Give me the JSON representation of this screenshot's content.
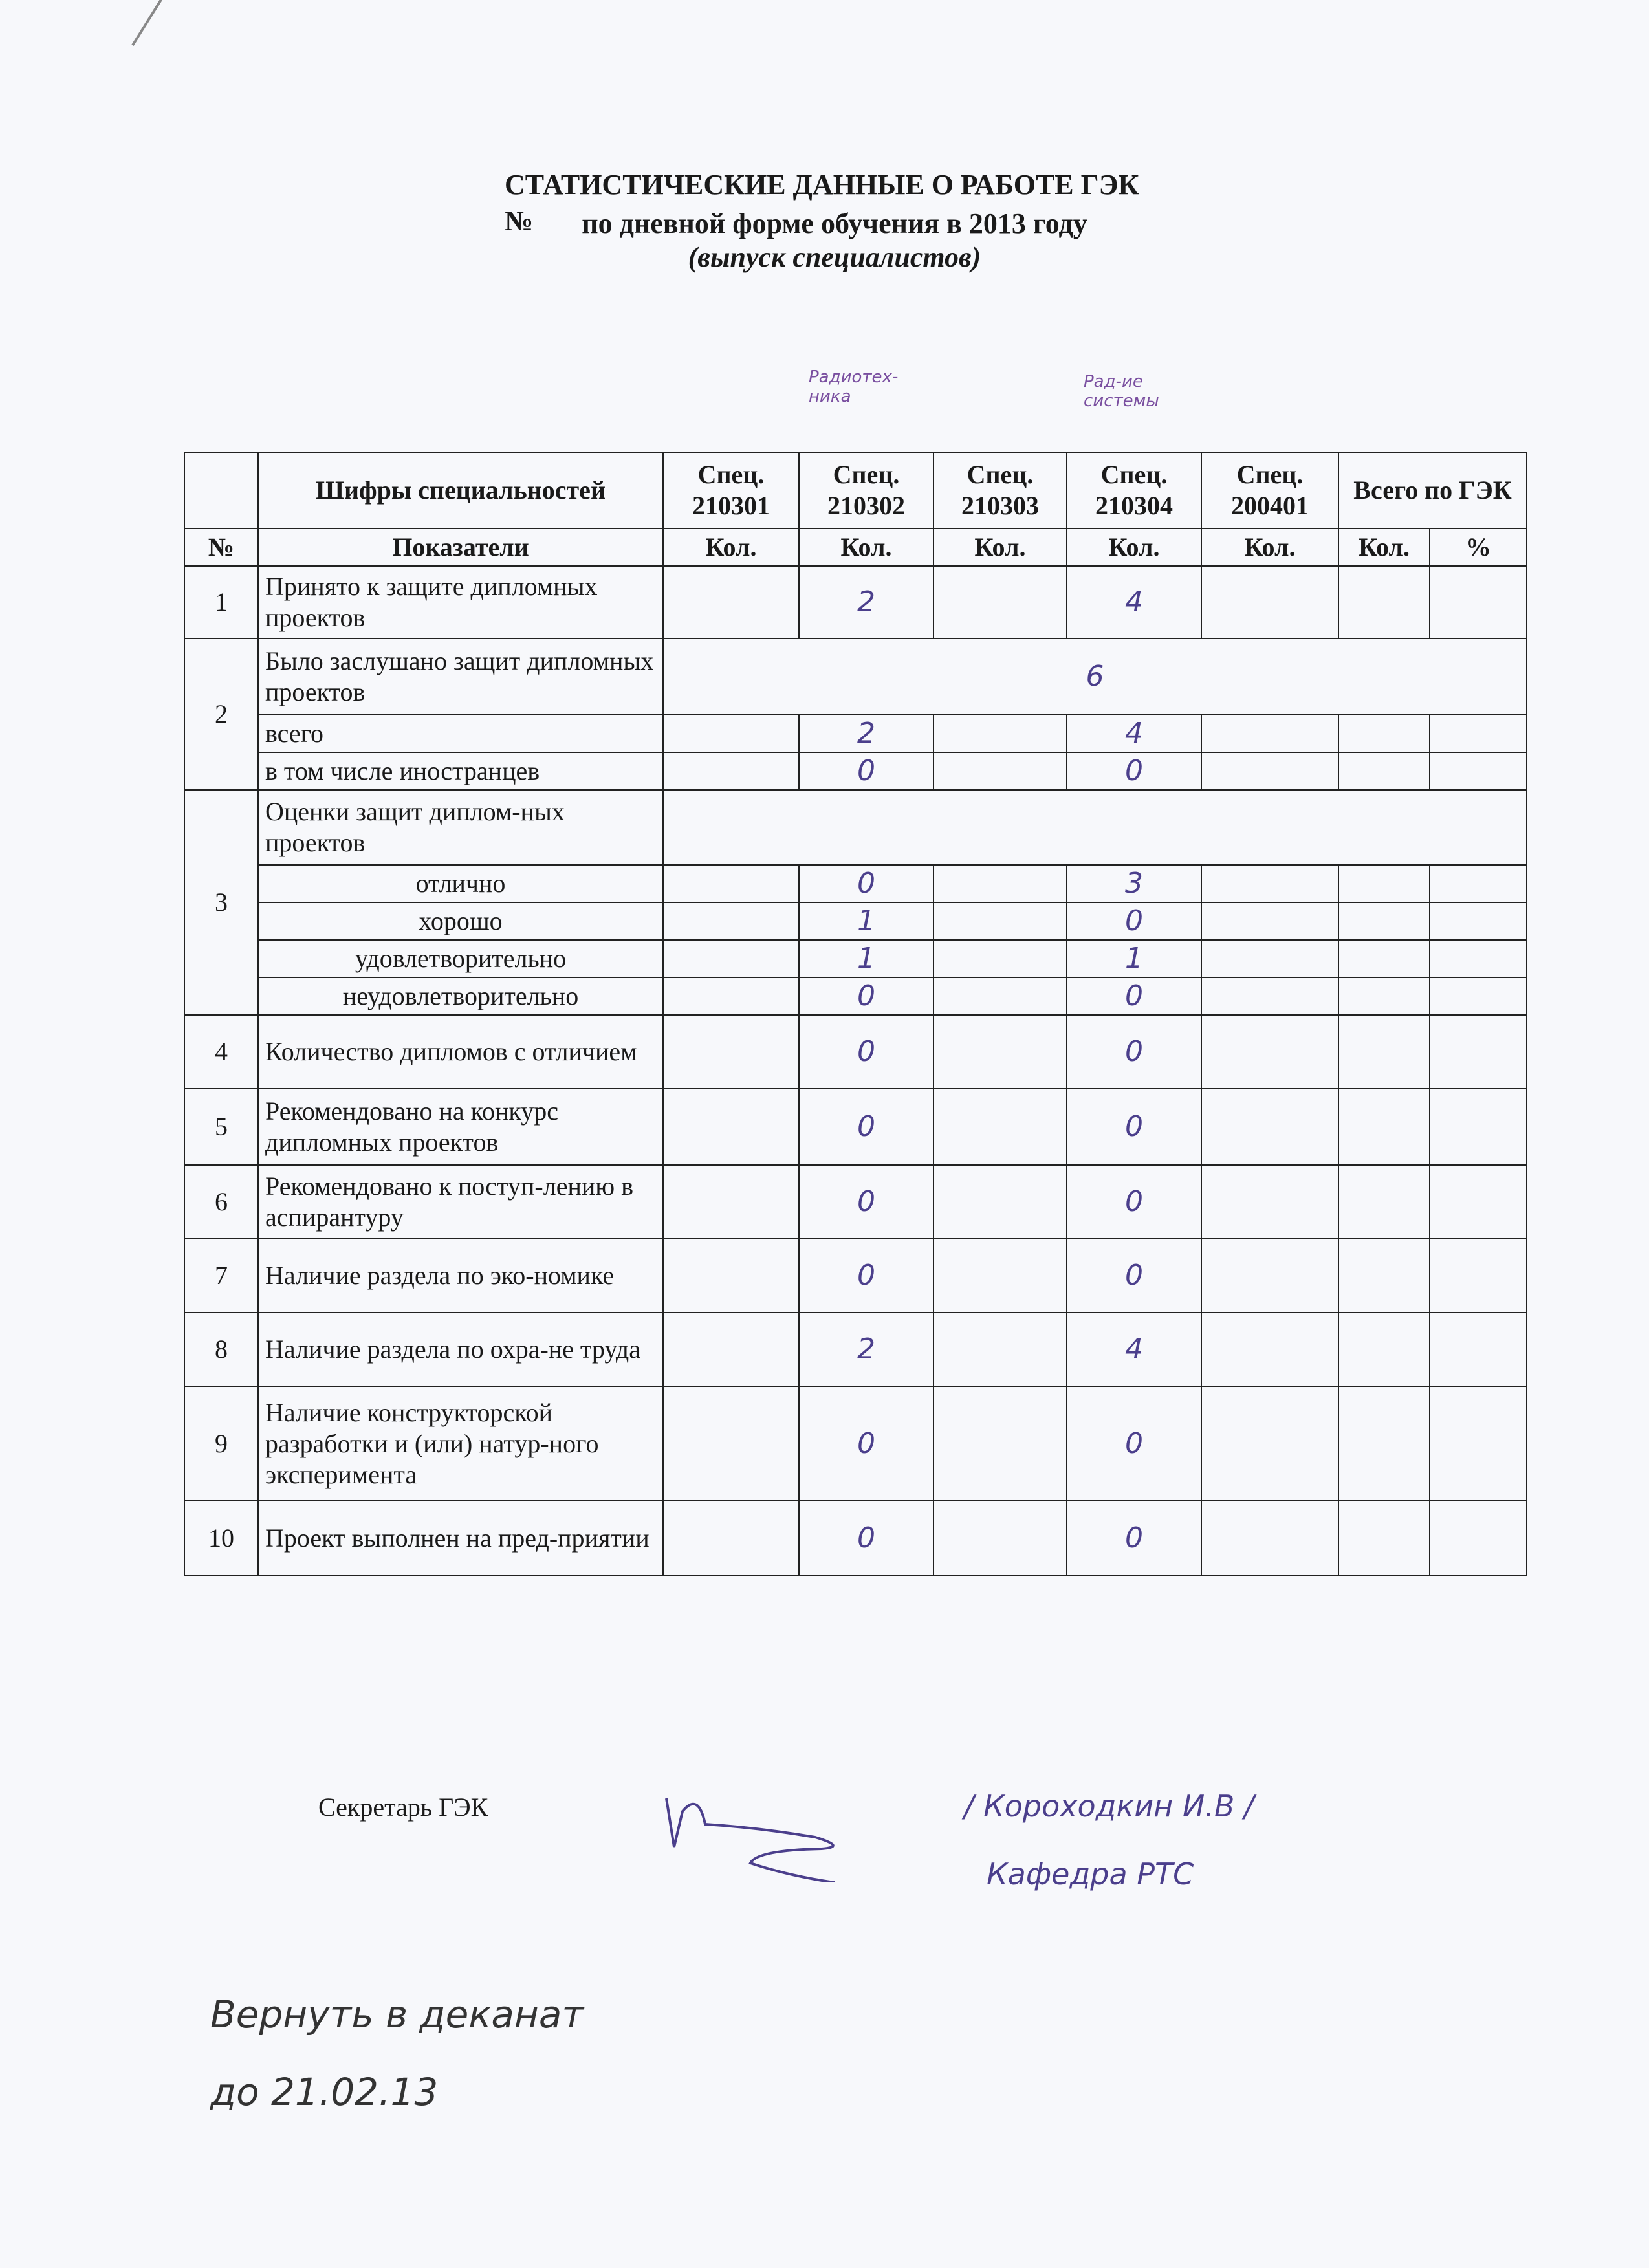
{
  "title": {
    "line1": "СТАТИСТИЧЕСКИЕ ДАННЫЕ О РАБОТЕ ГЭК №",
    "line2": "по дневной форме обучения в 2013  году",
    "line3": "(выпуск специалистов)"
  },
  "annotations": {
    "col_210302": "Радиотех-\nника",
    "col_210304": "Рад-ие\nсистемы"
  },
  "table": {
    "header": {
      "codes_label": "Шифры специальностей",
      "specs": [
        "Спец. 210301",
        "Спец. 210302",
        "Спец. 210303",
        "Спец. 210304",
        "Спец. 200401"
      ],
      "total": "Всего по ГЭК",
      "num": "№",
      "indicators": "Показатели",
      "qty": "Кол.",
      "percent": "%"
    },
    "rows": [
      {
        "num": "1",
        "label": "Принято к защите дипломных проектов",
        "values": [
          "",
          "2",
          "",
          "4",
          "",
          "",
          ""
        ]
      },
      {
        "num": "2",
        "label": "Было заслушано защит дипломных проектов",
        "merged": "6",
        "sub": [
          {
            "label": "всего",
            "values": [
              "",
              "2",
              "",
              "4",
              "",
              "",
              ""
            ]
          },
          {
            "label": "в том числе иностранцев",
            "values": [
              "",
              "0",
              "",
              "0",
              "",
              "",
              ""
            ]
          }
        ]
      },
      {
        "num": "3",
        "label": "Оценки  защит диплом-ных проектов",
        "merged": "",
        "sub": [
          {
            "label": "отлично",
            "values": [
              "",
              "0",
              "",
              "3",
              "",
              "",
              ""
            ]
          },
          {
            "label": "хорошо",
            "values": [
              "",
              "1",
              "",
              "0",
              "",
              "",
              ""
            ]
          },
          {
            "label": "удовлетворительно",
            "values": [
              "",
              "1",
              "",
              "1",
              "",
              "",
              ""
            ]
          },
          {
            "label": "неудовлетворительно",
            "values": [
              "",
              "0",
              "",
              "0",
              "",
              "",
              ""
            ]
          }
        ]
      },
      {
        "num": "4",
        "label": "Количество дипломов с отличием",
        "values": [
          "",
          "0",
          "",
          "0",
          "",
          "",
          ""
        ]
      },
      {
        "num": "5",
        "label": "Рекомендовано на конкурс дипломных проектов",
        "values": [
          "",
          "0",
          "",
          "0",
          "",
          "",
          ""
        ]
      },
      {
        "num": "6",
        "label": "Рекомендовано к поступ-лению в аспирантуру",
        "values": [
          "",
          "0",
          "",
          "0",
          "",
          "",
          ""
        ]
      },
      {
        "num": "7",
        "label": "Наличие раздела по эко-номике",
        "values": [
          "",
          "0",
          "",
          "0",
          "",
          "",
          ""
        ]
      },
      {
        "num": "8",
        "label": "Наличие раздела по охра-не труда",
        "values": [
          "",
          "2",
          "",
          "4",
          "",
          "",
          ""
        ]
      },
      {
        "num": "9",
        "label": "Наличие конструкторской разработки и (или) натур-ного эксперимента",
        "values": [
          "",
          "0",
          "",
          "0",
          "",
          "",
          ""
        ]
      },
      {
        "num": "10",
        "label": "Проект выполнен на пред-приятии",
        "values": [
          "",
          "0",
          "",
          "0",
          "",
          "",
          ""
        ]
      }
    ]
  },
  "footer": {
    "secretary_label": "Секретарь ГЭК",
    "secretary_name": "/ Короходкин И.В /",
    "department": "Кафедра РТС",
    "note_line1": "Вернуть в деканат",
    "note_line2": "до  21.02.13"
  },
  "colors": {
    "ink": "#4b3f8c",
    "print": "#1a1a1a",
    "paper": "#f7f8fb"
  }
}
